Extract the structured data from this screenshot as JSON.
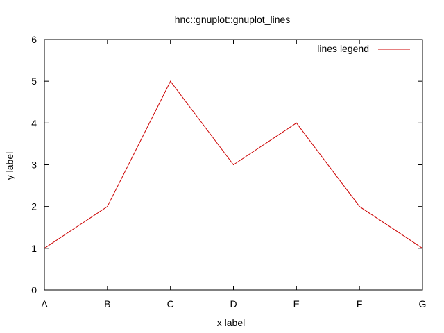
{
  "chart_data": {
    "type": "line",
    "title": "hnc::gnuplot::gnuplot_lines",
    "xlabel": "x label",
    "ylabel": "y label",
    "categories": [
      "A",
      "B",
      "C",
      "D",
      "E",
      "F",
      "G"
    ],
    "ylim": [
      0,
      6
    ],
    "yticks": [
      "0",
      "1",
      "2",
      "3",
      "4",
      "5",
      "6"
    ],
    "grid": false,
    "legend_position": "top-right",
    "series": [
      {
        "name": "lines legend",
        "values": [
          1,
          2,
          5,
          3,
          4,
          2,
          1
        ],
        "color": "#cc0000"
      }
    ]
  }
}
